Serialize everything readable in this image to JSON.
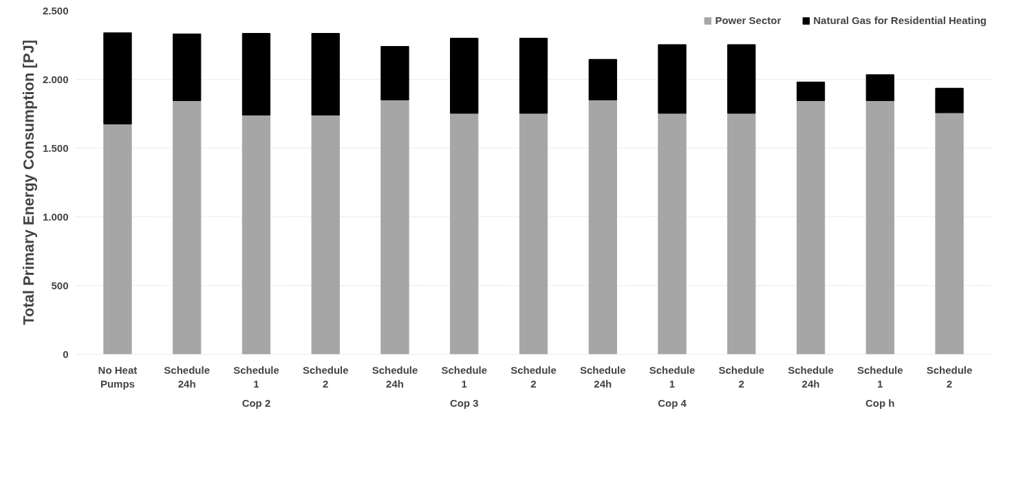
{
  "chart_data": {
    "type": "bar",
    "stacked": true,
    "ylabel": "Total Primary Energy Consumption [PJ]",
    "categories": [
      "No Heat Pumps",
      "Schedule 24h",
      "Schedule 1",
      "Schedule 2",
      "Schedule 24h",
      "Schedule 1",
      "Schedule 2",
      "Schedule 24h",
      "Schedule 1",
      "Schedule 2",
      "Schedule 24h",
      "Schedule 1",
      "Schedule 2"
    ],
    "annotations": [
      "Cop 2",
      "Cop 3",
      "Cop 4",
      "Cop h"
    ],
    "series": [
      {
        "name": "Power Sector",
        "color": "#a6a6a6",
        "values": [
          1675,
          1845,
          1740,
          1740,
          1850,
          1753,
          1753,
          1850,
          1753,
          1753,
          1845,
          1845,
          1757
        ]
      },
      {
        "name": "Natural Gas for Residential Heating",
        "color": "#000000",
        "values": [
          664,
          486,
          595,
          595,
          390,
          547,
          547,
          296,
          500,
          500,
          136,
          189,
          179
        ]
      }
    ],
    "ylim": [
      0,
      2500
    ],
    "yticks": [
      0,
      {
        "value": 500,
        "label": "500"
      },
      {
        "value": 1000,
        "label": "1.000"
      },
      {
        "value": 1500,
        "label": "1.500"
      },
      {
        "value": 2000,
        "label": "2.000"
      },
      {
        "value": 2500,
        "label": "2.500"
      }
    ],
    "grid": "y",
    "legend": "top right"
  }
}
